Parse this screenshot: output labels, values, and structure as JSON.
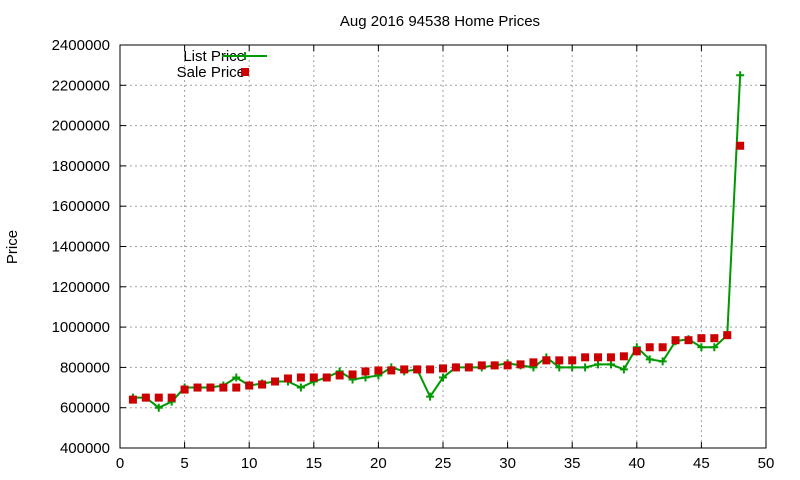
{
  "chart_data": {
    "type": "line",
    "title": "Aug 2016 94538 Home Prices",
    "xlabel": "",
    "ylabel": "Price",
    "xlim": [
      0,
      50
    ],
    "ylim": [
      400000,
      2400000
    ],
    "x_ticks": [
      "0",
      "5",
      "10",
      "15",
      "20",
      "25",
      "30",
      "35",
      "40",
      "45",
      "50"
    ],
    "y_ticks": [
      "400000",
      "600000",
      "800000",
      "1000000",
      "1200000",
      "1400000",
      "1600000",
      "1800000",
      "2000000",
      "2200000",
      "2400000"
    ],
    "grid": true,
    "legend_position": "top-left",
    "x": [
      1,
      2,
      3,
      4,
      5,
      6,
      7,
      8,
      9,
      10,
      11,
      12,
      13,
      14,
      15,
      16,
      17,
      18,
      19,
      20,
      21,
      22,
      23,
      24,
      25,
      26,
      27,
      28,
      29,
      30,
      31,
      32,
      33,
      34,
      35,
      36,
      37,
      38,
      39,
      40,
      41,
      42,
      43,
      44,
      45,
      46,
      47,
      48
    ],
    "series": [
      {
        "name": "List Price",
        "style": "line-plus",
        "color": "#009900",
        "values": [
          650000,
          650000,
          600000,
          630000,
          700000,
          700000,
          700000,
          710000,
          750000,
          710000,
          720000,
          730000,
          730000,
          700000,
          730000,
          750000,
          780000,
          740000,
          750000,
          760000,
          800000,
          780000,
          790000,
          655000,
          750000,
          800000,
          800000,
          800000,
          810000,
          820000,
          810000,
          800000,
          850000,
          800000,
          800000,
          800000,
          815000,
          815000,
          790000,
          900000,
          840000,
          830000,
          930000,
          940000,
          900000,
          900000,
          960000,
          2250000
        ]
      },
      {
        "name": "Sale Price",
        "style": "square",
        "color": "#cc0000",
        "values": [
          640000,
          650000,
          650000,
          650000,
          690000,
          700000,
          700000,
          700000,
          700000,
          710000,
          715000,
          730000,
          745000,
          750000,
          750000,
          750000,
          760000,
          765000,
          780000,
          785000,
          785000,
          790000,
          790000,
          790000,
          795000,
          800000,
          800000,
          810000,
          810000,
          810000,
          815000,
          825000,
          835000,
          835000,
          835000,
          850000,
          850000,
          850000,
          855000,
          880000,
          900000,
          900000,
          935000,
          935000,
          945000,
          945000,
          960000,
          1900000
        ]
      }
    ]
  }
}
